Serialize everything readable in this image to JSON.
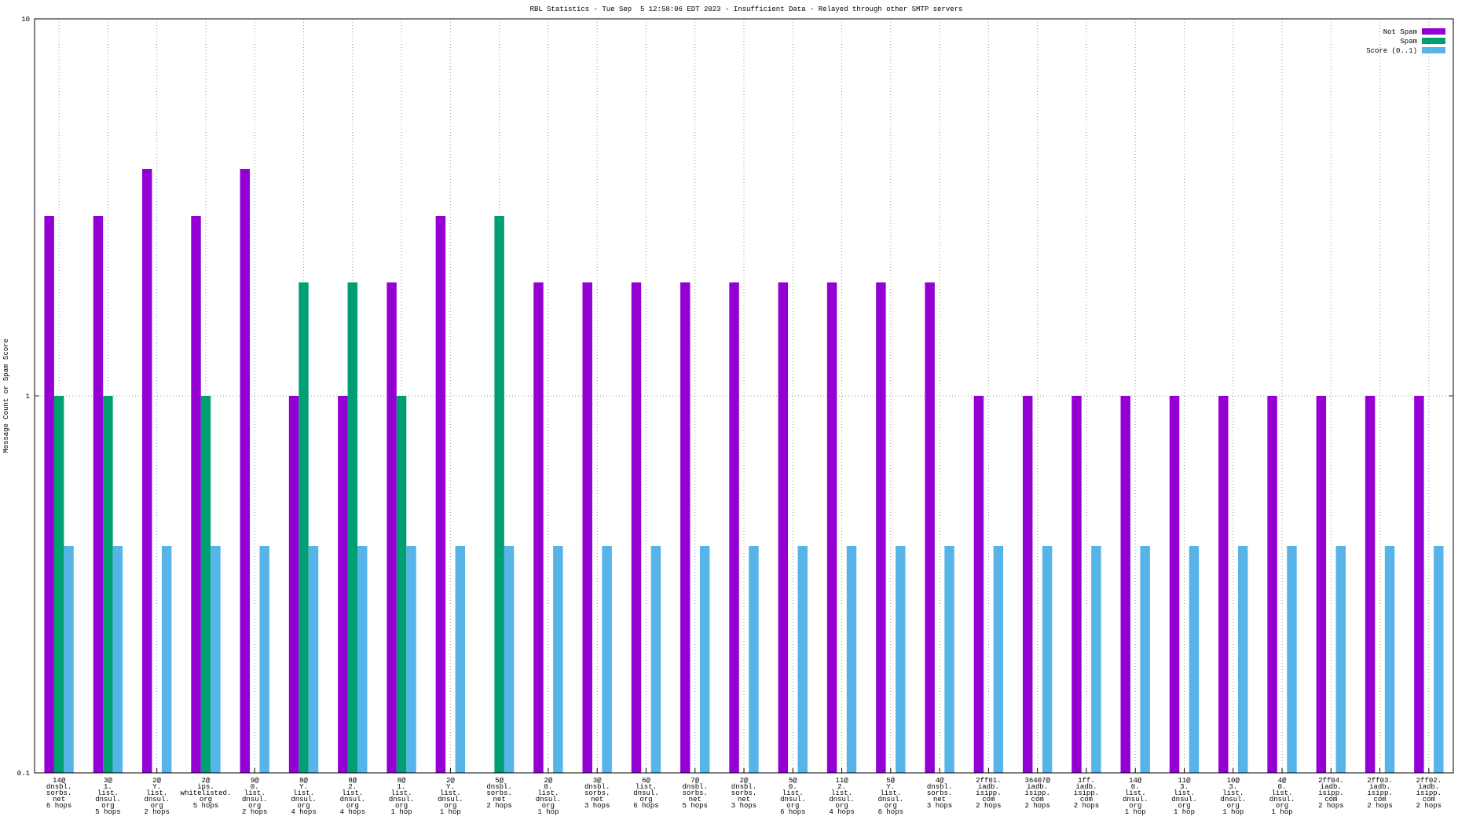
{
  "chart_data": {
    "type": "bar",
    "title": "RBL Statistics - Tue Sep  5 12:58:06 EDT 2023 - Insufficient Data - Relayed through other SMTP servers",
    "y_label": "Message Count or Spam Score",
    "log_scale": true,
    "grid": true,
    "legend_position": "top-right",
    "ylim": [
      0.1,
      10
    ],
    "yticks": [
      0.1,
      1,
      10
    ],
    "categories": [
      [
        "14@",
        "dnsbl.",
        "sorbs.",
        "net",
        "6 hops"
      ],
      [
        "3@",
        "1.",
        "list.",
        "dnsul.",
        "org",
        "5 hops"
      ],
      [
        "2@",
        "Y.",
        "list.",
        "dnsul.",
        "org",
        "2 hops"
      ],
      [
        "2@",
        "ips.",
        "whitelisted.",
        "org",
        "5 hops"
      ],
      [
        "9@",
        "0.",
        "list.",
        "dnsul.",
        "org",
        "2 hops"
      ],
      [
        "8@",
        "Y.",
        "list.",
        "dnsul.",
        "org",
        "4 hops"
      ],
      [
        "8@",
        "2.",
        "list.",
        "dnsul.",
        "org",
        "4 hops"
      ],
      [
        "8@",
        "1.",
        "list.",
        "dnsul.",
        "org",
        "1 hop"
      ],
      [
        "2@",
        "Y.",
        "list.",
        "dnsul.",
        "org",
        "1 hop"
      ],
      [
        "5@",
        "dnsbl.",
        "sorbs.",
        "net",
        "2 hops"
      ],
      [
        "2@",
        "0.",
        "list.",
        "dnsul.",
        "org",
        "1 hop"
      ],
      [
        "3@",
        "dnsbl.",
        "sorbs.",
        "net",
        "3 hops"
      ],
      [
        "6@",
        "list.",
        "dnsul.",
        "org",
        "6 hops"
      ],
      [
        "7@",
        "dnsbl.",
        "sorbs.",
        "net",
        "5 hops"
      ],
      [
        "2@",
        "dnsbl.",
        "sorbs.",
        "net",
        "3 hops"
      ],
      [
        "5@",
        "0.",
        "list.",
        "dnsul.",
        "org",
        "6 hops"
      ],
      [
        "11@",
        "2.",
        "list.",
        "dnsul.",
        "org",
        "4 hops"
      ],
      [
        "5@",
        "Y.",
        "list.",
        "dnsul.",
        "org",
        "6 hops"
      ],
      [
        "4@",
        "dnsbl.",
        "sorbs.",
        "net",
        "3 hops"
      ],
      [
        "2ff01.",
        "iadb.",
        "isipp.",
        "com",
        "2 hops"
      ],
      [
        "36407@",
        "iadb.",
        "isipp.",
        "com",
        "2 hops"
      ],
      [
        "1ff.",
        "iadb.",
        "isipp.",
        "com",
        "2 hops"
      ],
      [
        "14@",
        "0.",
        "list.",
        "dnsul.",
        "org",
        "1 hop"
      ],
      [
        "11@",
        "3.",
        "list.",
        "dnsul.",
        "org",
        "1 hop"
      ],
      [
        "10@",
        "3.",
        "list.",
        "dnsul.",
        "org",
        "1 hop"
      ],
      [
        "4@",
        "0.",
        "list.",
        "dnsul.",
        "org",
        "1 hop"
      ],
      [
        "2ff04.",
        "iadb.",
        "isipp.",
        "com",
        "2 hops"
      ],
      [
        "2ff03.",
        "iadb.",
        "isipp.",
        "com",
        "2 hops"
      ],
      [
        "2ff02.",
        "iadb.",
        "isipp.",
        "com",
        "2 hops"
      ]
    ],
    "series": [
      {
        "name": "Not Spam",
        "color": "#9400d3",
        "values": [
          3,
          3,
          4,
          3,
          4,
          1,
          1,
          2,
          3,
          null,
          2,
          2,
          2,
          2,
          2,
          2,
          2,
          2,
          2,
          1,
          1,
          1,
          1,
          1,
          1,
          1,
          1,
          1,
          1
        ]
      },
      {
        "name": "Spam",
        "color": "#009e73",
        "values": [
          1,
          1,
          null,
          1,
          null,
          2,
          2,
          1,
          null,
          3,
          null,
          null,
          null,
          null,
          null,
          null,
          null,
          null,
          null,
          null,
          null,
          null,
          null,
          null,
          null,
          null,
          null,
          null,
          null
        ]
      },
      {
        "name": "Score (0..1)",
        "color": "#56b4e9",
        "values": [
          0.4,
          0.4,
          0.4,
          0.4,
          0.4,
          0.4,
          0.4,
          0.4,
          0.4,
          0.4,
          0.4,
          0.4,
          0.4,
          0.4,
          0.4,
          0.4,
          0.4,
          0.4,
          0.4,
          0.4,
          0.4,
          0.4,
          0.4,
          0.4,
          0.4,
          0.4,
          0.4,
          0.4,
          0.4
        ]
      }
    ]
  }
}
